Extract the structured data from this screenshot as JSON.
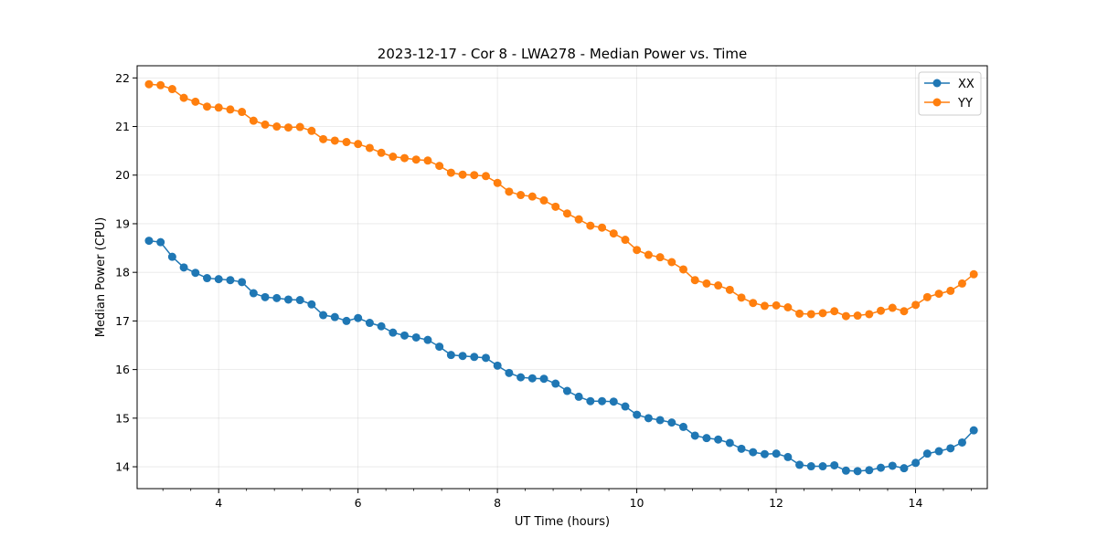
{
  "chart_data": {
    "type": "line",
    "title": "2023-12-17 - Cor 8 - LWA278 - Median Power vs. Time",
    "xlabel": "UT Time (hours)",
    "ylabel": "Median Power (CPU)",
    "xlim": [
      2.83,
      15.03
    ],
    "ylim": [
      13.55,
      22.25
    ],
    "xticks": [
      4,
      6,
      8,
      10,
      12,
      14
    ],
    "xtick_labels": [
      "4",
      "6",
      "8",
      "10",
      "12",
      "14"
    ],
    "xminor_step": 0.4,
    "yticks": [
      14,
      15,
      16,
      17,
      18,
      19,
      20,
      21,
      22
    ],
    "ytick_labels": [
      "14",
      "15",
      "16",
      "17",
      "18",
      "19",
      "20",
      "21",
      "22"
    ],
    "grid": true,
    "legend_position": "top-right",
    "x_start": 3.0,
    "x_step": 0.1667,
    "series": [
      {
        "name": "XX",
        "color": "#1f77b4",
        "values": [
          18.65,
          18.62,
          18.32,
          18.1,
          17.99,
          17.88,
          17.86,
          17.84,
          17.8,
          17.57,
          17.49,
          17.47,
          17.44,
          17.43,
          17.34,
          17.12,
          17.08,
          17.0,
          17.06,
          16.96,
          16.89,
          16.76,
          16.7,
          16.66,
          16.61,
          16.47,
          16.3,
          16.28,
          16.26,
          16.24,
          16.08,
          15.93,
          15.84,
          15.82,
          15.81,
          15.71,
          15.56,
          15.44,
          15.35,
          15.35,
          15.34,
          15.24,
          15.07,
          15.0,
          14.96,
          14.91,
          14.82,
          14.64,
          14.59,
          14.56,
          14.49,
          14.37,
          14.3,
          14.26,
          14.27,
          14.2,
          14.04,
          14.01,
          14.01,
          14.03,
          13.92,
          13.91,
          13.93,
          13.98,
          14.02,
          13.97,
          14.08,
          14.27,
          14.32,
          14.38,
          14.5,
          14.75
        ]
      },
      {
        "name": "YY",
        "color": "#ff7f0e",
        "values": [
          21.87,
          21.85,
          21.77,
          21.59,
          21.51,
          21.41,
          21.39,
          21.35,
          21.3,
          21.12,
          21.04,
          21.0,
          20.98,
          20.99,
          20.91,
          20.74,
          20.71,
          20.68,
          20.64,
          20.56,
          20.46,
          20.38,
          20.35,
          20.32,
          20.3,
          20.19,
          20.05,
          20.01,
          20.0,
          19.98,
          19.84,
          19.66,
          19.59,
          19.56,
          19.48,
          19.35,
          19.21,
          19.09,
          18.96,
          18.92,
          18.8,
          18.67,
          18.46,
          18.36,
          18.31,
          18.21,
          18.06,
          17.84,
          17.77,
          17.73,
          17.64,
          17.48,
          17.37,
          17.31,
          17.32,
          17.28,
          17.15,
          17.14,
          17.16,
          17.2,
          17.1,
          17.11,
          17.14,
          17.21,
          17.27,
          17.2,
          17.33,
          17.49,
          17.56,
          17.62,
          17.77,
          17.96
        ]
      }
    ]
  }
}
